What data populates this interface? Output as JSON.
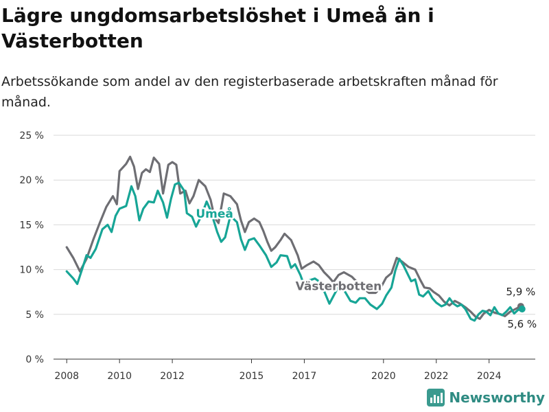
{
  "header": {
    "title": "Lägre ungdomsarbetslöshet i Umeå än i Västerbotten",
    "subtitle": "Arbetssökande som andel av den registerbaserade arbetskraften månad för månad."
  },
  "brand": {
    "name": "Newsworthy",
    "icon": "bar-chart-logo-icon",
    "color": "#3a9a8f"
  },
  "colors": {
    "umea": "#17a596",
    "vasterbotten": "#6e6e73",
    "grid": "#d9d9d9",
    "axis": "#333333"
  },
  "chart_data": {
    "type": "line",
    "title": "Lägre ungdomsarbetslöshet i Umeå än i Västerbotten",
    "subtitle": "Arbetssökande som andel av den registerbaserade arbetskraften månad för månad.",
    "xlabel": "",
    "ylabel": "",
    "x_ticks": [
      "2008",
      "2010",
      "2012",
      "2015",
      "2017",
      "2020",
      "2022",
      "2024"
    ],
    "y_ticks": [
      "0 %",
      "5 %",
      "10 %",
      "15 %",
      "20 %",
      "25 %"
    ],
    "y_tick_values": [
      0,
      5,
      10,
      15,
      20,
      25
    ],
    "xlim": [
      2007.5,
      2025.75
    ],
    "ylim": [
      0,
      25
    ],
    "grid": "horizontal",
    "legend": "inline labels",
    "series": [
      {
        "name": "Västerbotten",
        "color": "#6e6e73",
        "label_at": [
          2018.3,
          7.7
        ],
        "end_label": "5,9 %",
        "points": [
          [
            2008.0,
            12.5
          ],
          [
            2008.25,
            11.3
          ],
          [
            2008.5,
            9.8
          ],
          [
            2008.75,
            11.2
          ],
          [
            2009.0,
            13.3
          ],
          [
            2009.25,
            15.2
          ],
          [
            2009.5,
            17.0
          ],
          [
            2009.75,
            18.2
          ],
          [
            2009.9,
            17.3
          ],
          [
            2010.0,
            21.0
          ],
          [
            2010.25,
            21.8
          ],
          [
            2010.4,
            22.6
          ],
          [
            2010.55,
            21.5
          ],
          [
            2010.7,
            19.0
          ],
          [
            2010.85,
            20.8
          ],
          [
            2011.0,
            21.2
          ],
          [
            2011.15,
            20.9
          ],
          [
            2011.3,
            22.5
          ],
          [
            2011.5,
            21.8
          ],
          [
            2011.65,
            18.5
          ],
          [
            2011.85,
            21.7
          ],
          [
            2012.0,
            22.0
          ],
          [
            2012.15,
            21.7
          ],
          [
            2012.3,
            18.5
          ],
          [
            2012.5,
            18.8
          ],
          [
            2012.65,
            17.4
          ],
          [
            2012.8,
            18.2
          ],
          [
            2013.0,
            20.0
          ],
          [
            2013.25,
            19.3
          ],
          [
            2013.45,
            17.8
          ],
          [
            2013.6,
            15.8
          ],
          [
            2013.75,
            15.2
          ],
          [
            2013.95,
            18.5
          ],
          [
            2014.2,
            18.2
          ],
          [
            2014.45,
            17.3
          ],
          [
            2014.6,
            15.5
          ],
          [
            2014.75,
            14.2
          ],
          [
            2014.9,
            15.3
          ],
          [
            2015.1,
            15.7
          ],
          [
            2015.3,
            15.3
          ],
          [
            2015.45,
            14.3
          ],
          [
            2015.6,
            13.1
          ],
          [
            2015.75,
            12.1
          ],
          [
            2015.9,
            12.5
          ],
          [
            2016.1,
            13.3
          ],
          [
            2016.25,
            14.0
          ],
          [
            2016.5,
            13.3
          ],
          [
            2016.75,
            11.6
          ],
          [
            2016.9,
            10.1
          ],
          [
            2017.1,
            10.5
          ],
          [
            2017.35,
            10.9
          ],
          [
            2017.55,
            10.5
          ],
          [
            2017.75,
            9.7
          ],
          [
            2017.95,
            9.1
          ],
          [
            2018.1,
            8.6
          ],
          [
            2018.3,
            9.4
          ],
          [
            2018.5,
            9.7
          ],
          [
            2018.8,
            9.2
          ],
          [
            2019.0,
            8.6
          ],
          [
            2019.2,
            8.0
          ],
          [
            2019.45,
            7.4
          ],
          [
            2019.7,
            7.4
          ],
          [
            2019.9,
            8.0
          ],
          [
            2020.1,
            9.1
          ],
          [
            2020.3,
            9.6
          ],
          [
            2020.5,
            11.3
          ],
          [
            2020.7,
            10.9
          ],
          [
            2020.95,
            10.3
          ],
          [
            2021.2,
            10.0
          ],
          [
            2021.4,
            8.8
          ],
          [
            2021.55,
            8.0
          ],
          [
            2021.75,
            7.9
          ],
          [
            2021.9,
            7.5
          ],
          [
            2022.1,
            7.1
          ],
          [
            2022.3,
            6.4
          ],
          [
            2022.5,
            6.0
          ],
          [
            2022.7,
            6.5
          ],
          [
            2022.9,
            6.2
          ],
          [
            2023.1,
            5.8
          ],
          [
            2023.3,
            5.3
          ],
          [
            2023.5,
            4.7
          ],
          [
            2023.65,
            4.5
          ],
          [
            2023.8,
            5.1
          ],
          [
            2024.0,
            5.5
          ],
          [
            2024.2,
            5.2
          ],
          [
            2024.45,
            5.0
          ],
          [
            2024.6,
            4.8
          ],
          [
            2024.8,
            5.3
          ],
          [
            2025.0,
            5.6
          ],
          [
            2025.2,
            5.9
          ]
        ]
      },
      {
        "name": "Umeå",
        "color": "#17a596",
        "label_at": [
          2013.6,
          15.8
        ],
        "end_label": "5,6 %",
        "points": [
          [
            2008.0,
            9.8
          ],
          [
            2008.25,
            9.0
          ],
          [
            2008.4,
            8.4
          ],
          [
            2008.6,
            10.2
          ],
          [
            2008.75,
            11.6
          ],
          [
            2008.9,
            11.3
          ],
          [
            2009.1,
            12.3
          ],
          [
            2009.35,
            14.5
          ],
          [
            2009.55,
            15.0
          ],
          [
            2009.7,
            14.2
          ],
          [
            2009.85,
            16.0
          ],
          [
            2010.0,
            16.8
          ],
          [
            2010.25,
            17.1
          ],
          [
            2010.45,
            19.3
          ],
          [
            2010.6,
            18.2
          ],
          [
            2010.75,
            15.5
          ],
          [
            2010.9,
            16.8
          ],
          [
            2011.1,
            17.6
          ],
          [
            2011.3,
            17.5
          ],
          [
            2011.45,
            18.8
          ],
          [
            2011.65,
            17.5
          ],
          [
            2011.8,
            15.8
          ],
          [
            2011.95,
            17.9
          ],
          [
            2012.1,
            19.5
          ],
          [
            2012.25,
            19.7
          ],
          [
            2012.45,
            18.8
          ],
          [
            2012.55,
            16.3
          ],
          [
            2012.75,
            15.9
          ],
          [
            2012.9,
            14.8
          ],
          [
            2013.1,
            16.0
          ],
          [
            2013.3,
            17.6
          ],
          [
            2013.45,
            16.6
          ],
          [
            2013.7,
            14.2
          ],
          [
            2013.85,
            13.1
          ],
          [
            2014.0,
            13.6
          ],
          [
            2014.2,
            16.0
          ],
          [
            2014.45,
            15.3
          ],
          [
            2014.6,
            13.4
          ],
          [
            2014.75,
            12.2
          ],
          [
            2014.9,
            13.3
          ],
          [
            2015.1,
            13.5
          ],
          [
            2015.3,
            12.7
          ],
          [
            2015.55,
            11.6
          ],
          [
            2015.75,
            10.3
          ],
          [
            2015.95,
            10.8
          ],
          [
            2016.1,
            11.6
          ],
          [
            2016.35,
            11.5
          ],
          [
            2016.5,
            10.2
          ],
          [
            2016.65,
            10.6
          ],
          [
            2016.85,
            9.4
          ],
          [
            2017.0,
            8.2
          ],
          [
            2017.2,
            8.8
          ],
          [
            2017.4,
            9.0
          ],
          [
            2017.6,
            8.6
          ],
          [
            2017.75,
            7.6
          ],
          [
            2017.95,
            6.2
          ],
          [
            2018.15,
            7.3
          ],
          [
            2018.35,
            8.4
          ],
          [
            2018.55,
            7.5
          ],
          [
            2018.75,
            6.5
          ],
          [
            2018.95,
            6.3
          ],
          [
            2019.1,
            6.8
          ],
          [
            2019.3,
            6.8
          ],
          [
            2019.5,
            6.1
          ],
          [
            2019.75,
            5.6
          ],
          [
            2019.95,
            6.2
          ],
          [
            2020.1,
            7.1
          ],
          [
            2020.3,
            8.0
          ],
          [
            2020.45,
            9.9
          ],
          [
            2020.6,
            11.2
          ],
          [
            2020.75,
            10.5
          ],
          [
            2020.9,
            9.6
          ],
          [
            2021.05,
            8.7
          ],
          [
            2021.2,
            8.9
          ],
          [
            2021.35,
            7.2
          ],
          [
            2021.5,
            7.0
          ],
          [
            2021.7,
            7.6
          ],
          [
            2021.85,
            6.8
          ],
          [
            2022.0,
            6.3
          ],
          [
            2022.2,
            5.9
          ],
          [
            2022.35,
            6.1
          ],
          [
            2022.5,
            6.8
          ],
          [
            2022.65,
            6.2
          ],
          [
            2022.8,
            5.9
          ],
          [
            2022.95,
            6.1
          ],
          [
            2023.1,
            5.6
          ],
          [
            2023.3,
            4.5
          ],
          [
            2023.45,
            4.3
          ],
          [
            2023.6,
            5.0
          ],
          [
            2023.75,
            5.4
          ],
          [
            2023.9,
            5.3
          ],
          [
            2024.05,
            4.9
          ],
          [
            2024.2,
            5.8
          ],
          [
            2024.35,
            5.1
          ],
          [
            2024.5,
            4.9
          ],
          [
            2024.65,
            5.3
          ],
          [
            2024.8,
            5.8
          ],
          [
            2024.95,
            5.1
          ],
          [
            2025.1,
            5.5
          ],
          [
            2025.25,
            5.6
          ]
        ]
      }
    ]
  }
}
